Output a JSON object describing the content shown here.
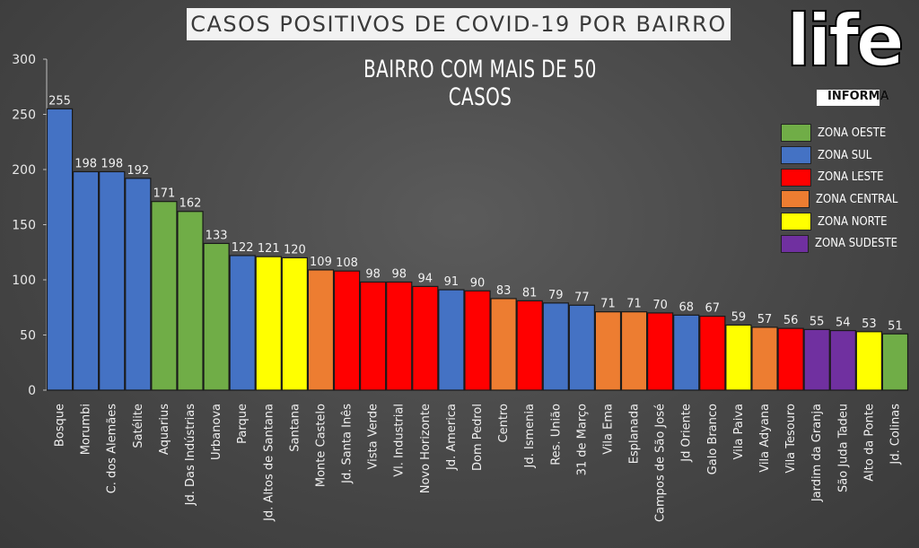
{
  "title": "CASOS POSITIVOS DE COVID-19 POR BAIRRO",
  "subtitle": "BAIRRO COM MAIS DE 50 CASOS",
  "logo": {
    "main": "life",
    "sub": "INFORMA"
  },
  "zone_colors": {
    "oeste": "#70ad47",
    "sul": "#4472c4",
    "leste": "#ff0000",
    "central": "#ed7d31",
    "norte": "#ffff00",
    "sudeste": "#7030a0"
  },
  "legend": [
    {
      "label": "ZONA OESTE",
      "zone": "oeste"
    },
    {
      "label": "ZONA SUL",
      "zone": "sul"
    },
    {
      "label": "ZONA LESTE",
      "zone": "leste"
    },
    {
      "label": "ZONA CENTRAL",
      "zone": "central"
    },
    {
      "label": "ZONA NORTE",
      "zone": "norte"
    },
    {
      "label": "ZONA SUDESTE",
      "zone": "sudeste"
    }
  ],
  "chart_data": {
    "type": "bar",
    "title": "CASOS POSITIVOS DE COVID-19 POR BAIRRO",
    "subtitle": "BAIRRO COM MAIS DE 50 CASOS",
    "xlabel": "",
    "ylabel": "",
    "ylim": [
      0,
      300
    ],
    "yticks": [
      0,
      50,
      100,
      150,
      200,
      250,
      300
    ],
    "grid": false,
    "legend_position": "right",
    "categories": [
      "Bosque",
      "Morumbi",
      "C. dos Alemães",
      "Satélite",
      "Aquarius",
      "Jd. Das Indústrias",
      "Urbanova",
      "Parque",
      "Jd. Altos de Santana",
      "Santana",
      "Monte Castelo",
      "Jd. Santa Inês",
      "Vista Verde",
      "Vl. Industrial",
      "Novo Horizonte",
      "Jd. America",
      "Dom Pedrol",
      "Centro",
      "Jd. Ismenia",
      "Res. União",
      "31 de Março",
      "Vila Ema",
      "Esplanada",
      "Campos de São José",
      "Jd Oriente",
      "Galo Branco",
      "Vila Paiva",
      "Vila Adyana",
      "Vila Tesouro",
      "Jardim da Granja",
      "São Juda Tadeu",
      "Alto da Ponte",
      "Jd. Colinas"
    ],
    "values": [
      255,
      198,
      198,
      192,
      171,
      162,
      133,
      122,
      121,
      120,
      109,
      108,
      98,
      98,
      94,
      91,
      90,
      83,
      81,
      79,
      77,
      71,
      71,
      70,
      68,
      67,
      59,
      57,
      56,
      55,
      54,
      53,
      51
    ],
    "zones": [
      "sul",
      "sul",
      "sul",
      "sul",
      "oeste",
      "oeste",
      "oeste",
      "sul",
      "norte",
      "norte",
      "central",
      "leste",
      "leste",
      "leste",
      "leste",
      "sul",
      "leste",
      "central",
      "leste",
      "sul",
      "sul",
      "central",
      "central",
      "leste",
      "sul",
      "leste",
      "norte",
      "central",
      "leste",
      "sudeste",
      "sudeste",
      "norte",
      "oeste"
    ]
  }
}
